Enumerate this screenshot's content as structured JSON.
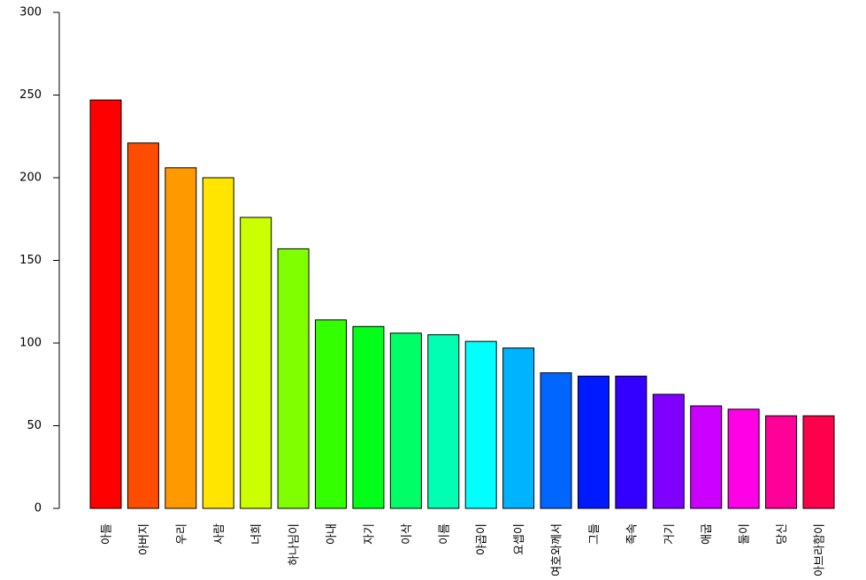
{
  "chart_data": {
    "type": "bar",
    "categories": [
      "아들",
      "아버지",
      "우리",
      "사람",
      "너희",
      "하나님이",
      "아내",
      "자기",
      "이삭",
      "이름",
      "야곱이",
      "요셉이",
      "여호와께서",
      "그들",
      "족속",
      "거기",
      "애굽",
      "둘이",
      "당신",
      "아브라함이"
    ],
    "values": [
      247,
      221,
      206,
      200,
      176,
      157,
      114,
      110,
      106,
      105,
      101,
      97,
      82,
      80,
      80,
      69,
      62,
      60,
      56,
      56
    ],
    "colors": [
      "#FF0000",
      "#FF4D00",
      "#FF9900",
      "#FFE500",
      "#CCFF00",
      "#80FF00",
      "#33FF00",
      "#00FF19",
      "#00FF66",
      "#00FFB2",
      "#00FFFF",
      "#00B3FF",
      "#0066FF",
      "#001AFF",
      "#3300FF",
      "#7F00FF",
      "#CC00FF",
      "#FF00E6",
      "#FF0099",
      "#FF004D"
    ],
    "ylim": [
      0,
      300
    ],
    "yticks": [
      0,
      50,
      100,
      150,
      200,
      250,
      300
    ]
  }
}
